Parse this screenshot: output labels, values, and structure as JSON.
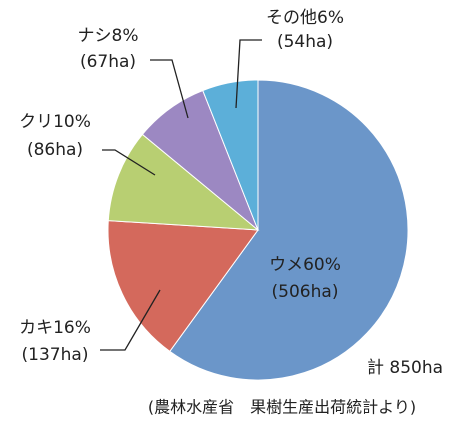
{
  "chart_data": {
    "type": "pie",
    "categories": [
      "ウメ",
      "カキ",
      "クリ",
      "ナシ",
      "その他"
    ],
    "values": [
      60,
      16,
      10,
      8,
      6
    ],
    "value_labels": [
      "60%",
      "16%",
      "10%",
      "8%",
      "6%"
    ],
    "areas": [
      506,
      137,
      86,
      67,
      54
    ],
    "area_labels": [
      "(506ha)",
      "(137ha)",
      "(86ha)",
      "(67ha)",
      "(54ha)"
    ],
    "colors": [
      "#6b96c9",
      "#d4695c",
      "#b8cf72",
      "#9c88c2",
      "#5cafd9"
    ],
    "total_label": "計 850ha",
    "source": "(農林水産省　果樹生産出荷統計より)"
  }
}
